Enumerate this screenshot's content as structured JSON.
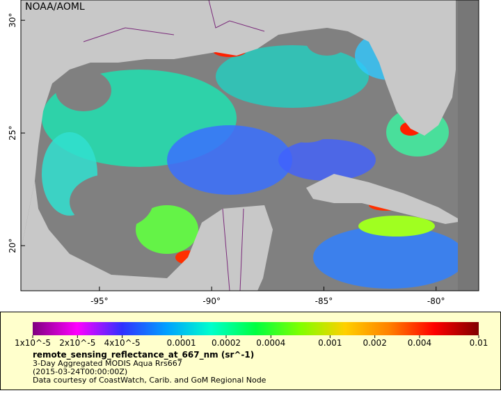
{
  "map": {
    "credit": "NOAA/AOML",
    "xlim": [
      -98.5,
      -78.1
    ],
    "ylim": [
      18,
      30.9
    ],
    "xticks": [
      {
        "value": -95,
        "label": "-95°"
      },
      {
        "value": -90,
        "label": "-90°"
      },
      {
        "value": -85,
        "label": "-85°"
      },
      {
        "value": -80,
        "label": "-80°"
      }
    ],
    "yticks": [
      {
        "value": 20,
        "label": "20°"
      },
      {
        "value": 25,
        "label": "25°"
      },
      {
        "value": 30,
        "label": "30°"
      }
    ]
  },
  "colorbar": {
    "scale": "log",
    "lim": [
      1e-05,
      0.01
    ],
    "colors": [
      "#7f007f",
      "#ff00ff",
      "#3030ff",
      "#00a0ff",
      "#00ffcc",
      "#00ff40",
      "#80ff00",
      "#ffd000",
      "#ff8000",
      "#ff0000",
      "#800000"
    ],
    "ticks": [
      {
        "value": 1e-05,
        "label": "1x10^-5"
      },
      {
        "value": 2e-05,
        "label": "2x10^-5"
      },
      {
        "value": 4e-05,
        "label": "4x10^-5"
      },
      0.0001,
      0.0002,
      0.0004,
      0.001,
      0.002,
      0.004,
      0.01
    ]
  },
  "legend": {
    "variable": "remote_sensing_reflectance_at_667_nm (sr^-1)",
    "description": "3-Day Aggregated MODIS Aqua Rrs667",
    "time": "(2015-03-24T00:00:00Z)",
    "credit": "Data courtesy of CoastWatch, Carib. and GoM Regional Node"
  }
}
